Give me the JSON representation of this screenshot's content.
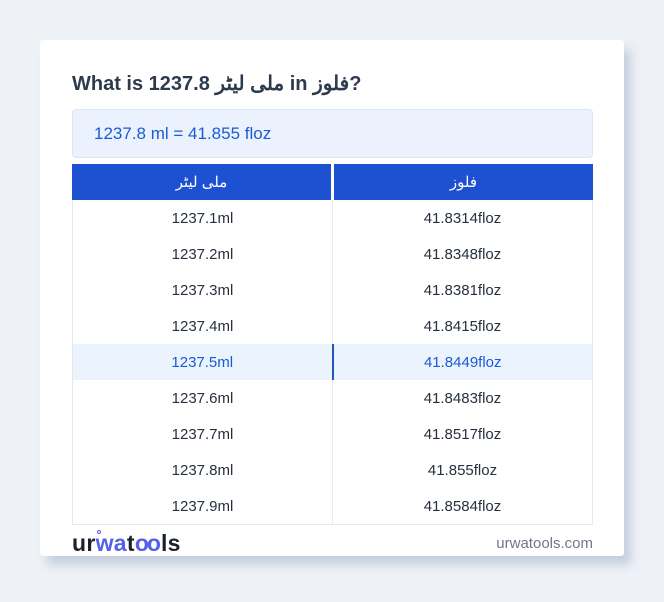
{
  "header": {
    "title": "What is 1237.8 ملی لیٹر in فلوز?"
  },
  "result": {
    "text": "1237.8 ml = 41.855 floz"
  },
  "table": {
    "headers": [
      "ملی لیٹر",
      "فلوز"
    ],
    "rows": [
      {
        "ml": "1237.1ml",
        "floz": "41.8314floz",
        "highlighted": false
      },
      {
        "ml": "1237.2ml",
        "floz": "41.8348floz",
        "highlighted": false
      },
      {
        "ml": "1237.3ml",
        "floz": "41.8381floz",
        "highlighted": false
      },
      {
        "ml": "1237.4ml",
        "floz": "41.8415floz",
        "highlighted": false
      },
      {
        "ml": "1237.5ml",
        "floz": "41.8449floz",
        "highlighted": true
      },
      {
        "ml": "1237.6ml",
        "floz": "41.8483floz",
        "highlighted": false
      },
      {
        "ml": "1237.7ml",
        "floz": "41.8517floz",
        "highlighted": false
      },
      {
        "ml": "1237.8ml",
        "floz": "41.855floz",
        "highlighted": false
      },
      {
        "ml": "1237.9ml",
        "floz": "41.8584floz",
        "highlighted": false
      }
    ]
  },
  "footer": {
    "logo": {
      "part_ur": "ur",
      "part_wa": "wa",
      "part_t": "t",
      "part_oo": "oo",
      "part_ls": "ls"
    },
    "site": "urwatools.com"
  },
  "colors": {
    "page_background": "#eef2f7",
    "table_header_blue": "#1e50d2",
    "highlight_row_bg": "#ebf3fd",
    "result_box_bg": "#ebf2fd",
    "link_blue": "#1b5ad6",
    "logo_blue": "#5560e8",
    "body_text": "#27303f",
    "muted_text": "#6f7787"
  }
}
